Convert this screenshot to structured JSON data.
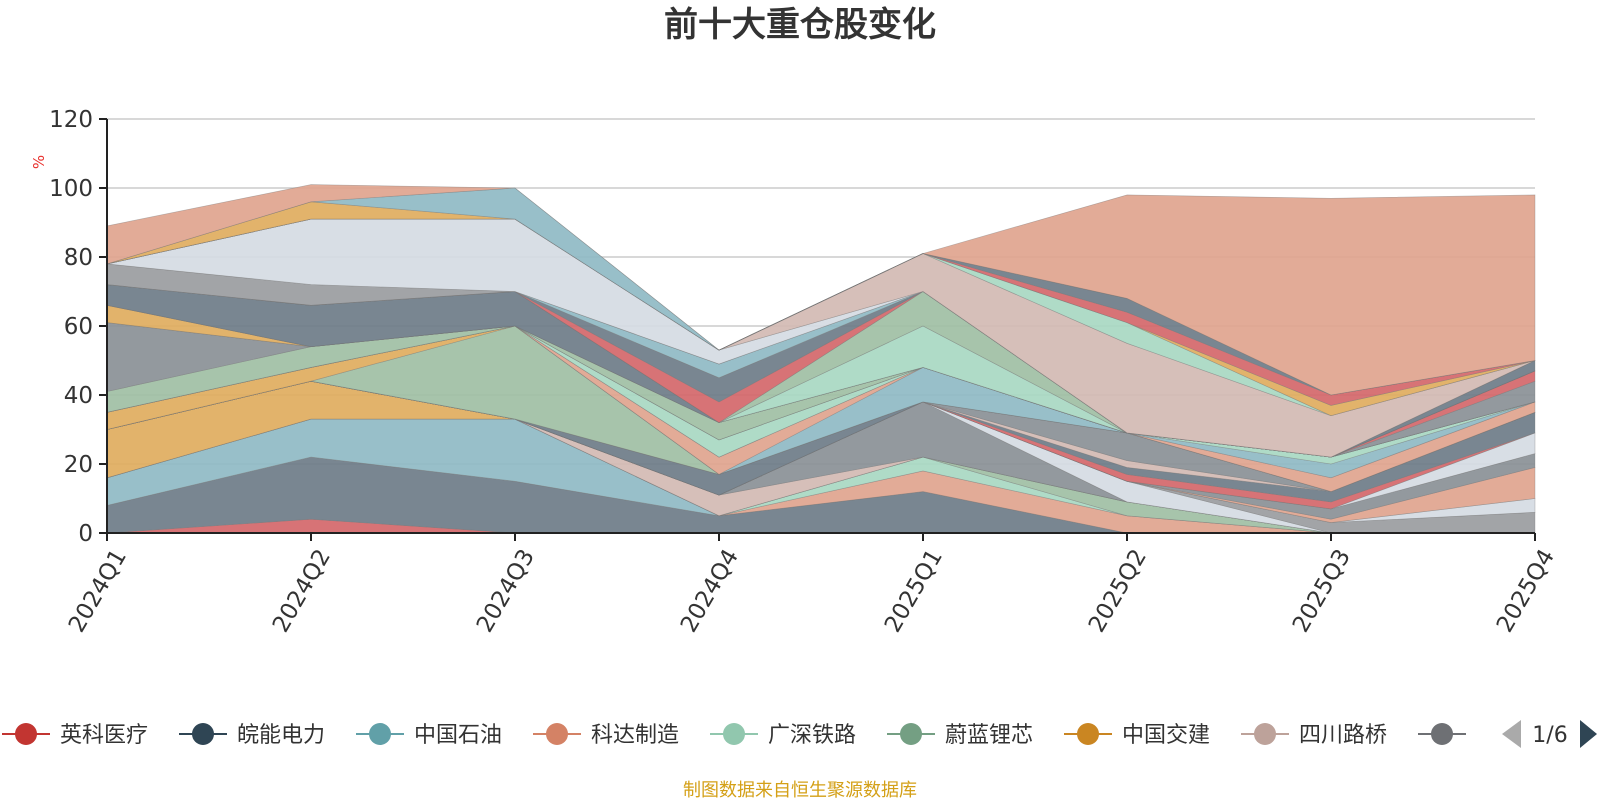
{
  "chart_data": {
    "type": "area",
    "title": "前十大重仓股变化",
    "ylabel": "%",
    "ylim": [
      0,
      120
    ],
    "yticks": [
      0,
      20,
      40,
      60,
      80,
      100,
      120
    ],
    "categories": [
      "2024Q1",
      "2024Q2",
      "2024Q3",
      "2024Q4",
      "2025Q1",
      "2025Q2",
      "2025Q3",
      "2025Q4"
    ],
    "stacked": true,
    "grid": true,
    "legend_position": "bottom",
    "legend_page": "1/6",
    "source": "制图数据来自恒生聚源数据库",
    "series": [
      {
        "name": "英科医疗",
        "color": "#d4676a",
        "values": [
          0,
          4,
          0,
          0,
          0,
          0,
          0,
          0
        ]
      },
      {
        "name": "皖能电力",
        "color": "#6e7c88",
        "values": [
          8,
          18,
          15,
          5,
          12,
          0,
          0,
          0
        ]
      },
      {
        "name": "中国石油",
        "color": "#8fbac4",
        "values": [
          8,
          11,
          18,
          0,
          0,
          0,
          0,
          0
        ]
      },
      {
        "name": "科达制造",
        "color": "#e0a48e",
        "values": [
          0,
          0,
          0,
          0,
          6,
          5,
          0,
          0
        ]
      },
      {
        "name": "广深铁路",
        "color": "#a8d8c2",
        "values": [
          0,
          0,
          0,
          0,
          4,
          0,
          0,
          0
        ]
      },
      {
        "name": "蔚蓝锂芯",
        "color": "#9fbfa4",
        "values": [
          0,
          0,
          0,
          0,
          0,
          4,
          0,
          0
        ]
      },
      {
        "name": "中国交建",
        "color": "#e0ad5e",
        "values": [
          14,
          11,
          0,
          0,
          0,
          0,
          0,
          0
        ]
      },
      {
        "name": "四川路桥",
        "color": "#d3bab3",
        "values": [
          0,
          0,
          0,
          6,
          0,
          0,
          0,
          0
        ]
      },
      {
        "name": "",
        "color": "#8a9096",
        "values": [
          0,
          0,
          0,
          0,
          16,
          0,
          0,
          0
        ]
      },
      {
        "name": "",
        "color": "#d5dbe3",
        "values": [
          0,
          0,
          0,
          0,
          0,
          6,
          0,
          0
        ]
      },
      {
        "name": "",
        "color": "#9a9ca0",
        "values": [
          0,
          0,
          0,
          0,
          0,
          0,
          3,
          6
        ]
      },
      {
        "name": "",
        "color": "#d5dbe3",
        "values": [
          0,
          0,
          0,
          0,
          0,
          0,
          0,
          4
        ]
      },
      {
        "name": "",
        "color": "#e0a48e",
        "values": [
          0,
          0,
          0,
          0,
          0,
          0,
          1,
          9
        ]
      },
      {
        "name": "",
        "color": "#8a9096",
        "values": [
          0,
          0,
          0,
          0,
          0,
          0,
          3,
          4
        ]
      },
      {
        "name": "",
        "color": "#d5dbe3",
        "values": [
          0,
          0,
          0,
          0,
          0,
          0,
          0,
          6
        ]
      },
      {
        "name": "",
        "color": "#d4676a",
        "values": [
          0,
          0,
          0,
          0,
          0,
          2,
          2,
          0
        ]
      },
      {
        "name": "",
        "color": "#6e7c88",
        "values": [
          0,
          0,
          0,
          6,
          0,
          2,
          3,
          6
        ]
      },
      {
        "name": "",
        "color": "#d3bab3",
        "values": [
          0,
          0,
          0,
          0,
          0,
          2,
          0,
          0
        ]
      },
      {
        "name": "",
        "color": "#8a9096",
        "values": [
          0,
          0,
          0,
          0,
          0,
          8,
          0,
          0
        ]
      },
      {
        "name": "",
        "color": "#9fbfa4",
        "values": [
          0,
          0,
          27,
          0,
          0,
          0,
          0,
          0
        ]
      },
      {
        "name": "",
        "color": "#e0ad5e",
        "values": [
          5,
          4,
          0,
          0,
          0,
          0,
          0,
          0
        ]
      },
      {
        "name": "",
        "color": "#8fbac4",
        "values": [
          0,
          0,
          0,
          0,
          10,
          0,
          0,
          0
        ]
      },
      {
        "name": "",
        "color": "#e0a48e",
        "values": [
          0,
          0,
          0,
          5,
          0,
          0,
          4,
          3
        ]
      },
      {
        "name": "",
        "color": "#8fbac4",
        "values": [
          0,
          0,
          0,
          0,
          0,
          0,
          4,
          0
        ]
      },
      {
        "name": "",
        "color": "#a8d8c2",
        "values": [
          0,
          0,
          0,
          5,
          0,
          0,
          2,
          0
        ]
      },
      {
        "name": "",
        "color": "#9fbfa4",
        "values": [
          6,
          6,
          0,
          0,
          0,
          0,
          0,
          0
        ]
      },
      {
        "name": "",
        "color": "#8a9096",
        "values": [
          20,
          0,
          0,
          0,
          0,
          0,
          0,
          0
        ]
      },
      {
        "name": "",
        "color": "#9fbfa4",
        "values": [
          0,
          0,
          0,
          5,
          0,
          0,
          0,
          0
        ]
      },
      {
        "name": "",
        "color": "#e0ad5e",
        "values": [
          5,
          0,
          0,
          0,
          0,
          0,
          0,
          0
        ]
      },
      {
        "name": "",
        "color": "#8a9096",
        "values": [
          0,
          0,
          0,
          0,
          0,
          0,
          0,
          6
        ]
      },
      {
        "name": "",
        "color": "#d4676a",
        "values": [
          0,
          0,
          0,
          0,
          0,
          0,
          0,
          3
        ]
      },
      {
        "name": "",
        "color": "#6e7c88",
        "values": [
          6,
          12,
          10,
          0,
          0,
          0,
          0,
          0
        ]
      },
      {
        "name": "",
        "color": "#a8d8c2",
        "values": [
          0,
          0,
          0,
          0,
          12,
          0,
          0,
          0
        ]
      },
      {
        "name": "",
        "color": "#9fbfa4",
        "values": [
          0,
          0,
          0,
          0,
          10,
          0,
          0,
          0
        ]
      },
      {
        "name": "",
        "color": "#d4676a",
        "values": [
          0,
          0,
          0,
          6,
          0,
          0,
          0,
          0
        ]
      },
      {
        "name": "",
        "color": "#6e7c88",
        "values": [
          0,
          0,
          0,
          7,
          0,
          0,
          0,
          3
        ]
      },
      {
        "name": "",
        "color": "#8fbac4",
        "values": [
          0,
          0,
          0,
          4,
          0,
          0,
          0,
          0
        ]
      },
      {
        "name": "",
        "color": "#9a9ca0",
        "values": [
          6,
          6,
          0,
          0,
          0,
          0,
          0,
          0
        ]
      },
      {
        "name": "",
        "color": "#d5dbe3",
        "values": [
          0,
          19,
          21,
          4,
          0,
          0,
          0,
          0
        ]
      },
      {
        "name": "",
        "color": "#d3bab3",
        "values": [
          0,
          0,
          0,
          0,
          11,
          26,
          12,
          0
        ]
      },
      {
        "name": "",
        "color": "#a8d8c2",
        "values": [
          0,
          0,
          0,
          0,
          0,
          6,
          0,
          0
        ]
      },
      {
        "name": "",
        "color": "#e0ad5e",
        "values": [
          0,
          0,
          0,
          0,
          0,
          0,
          3,
          0
        ]
      },
      {
        "name": "",
        "color": "#d4676a",
        "values": [
          0,
          0,
          0,
          0,
          0,
          3,
          3,
          0
        ]
      },
      {
        "name": "",
        "color": "#6e7c88",
        "values": [
          0,
          0,
          0,
          0,
          0,
          4,
          0,
          0
        ]
      },
      {
        "name": "",
        "color": "#e0ad5e",
        "values": [
          0,
          5,
          0,
          0,
          0,
          0,
          0,
          0
        ]
      },
      {
        "name": "",
        "color": "#8fbac4",
        "values": [
          0,
          0,
          9,
          0,
          0,
          0,
          0,
          0
        ]
      },
      {
        "name": "",
        "color": "#e0a48e",
        "values": [
          11,
          5,
          0,
          0,
          0,
          30,
          57,
          48
        ]
      }
    ]
  },
  "legend": {
    "items": [
      {
        "name": "英科医疗",
        "color": "#c23531"
      },
      {
        "name": "皖能电力",
        "color": "#2f4554"
      },
      {
        "name": "中国石油",
        "color": "#61a0a8"
      },
      {
        "name": "科达制造",
        "color": "#d48265"
      },
      {
        "name": "广深铁路",
        "color": "#91c7ae"
      },
      {
        "name": "蔚蓝锂芯",
        "color": "#749f83"
      },
      {
        "name": "中国交建",
        "color": "#ca8622"
      },
      {
        "name": "四川路桥",
        "color": "#bda29a"
      },
      {
        "name": "",
        "color": "#6e7074"
      }
    ],
    "page": "1/6"
  }
}
